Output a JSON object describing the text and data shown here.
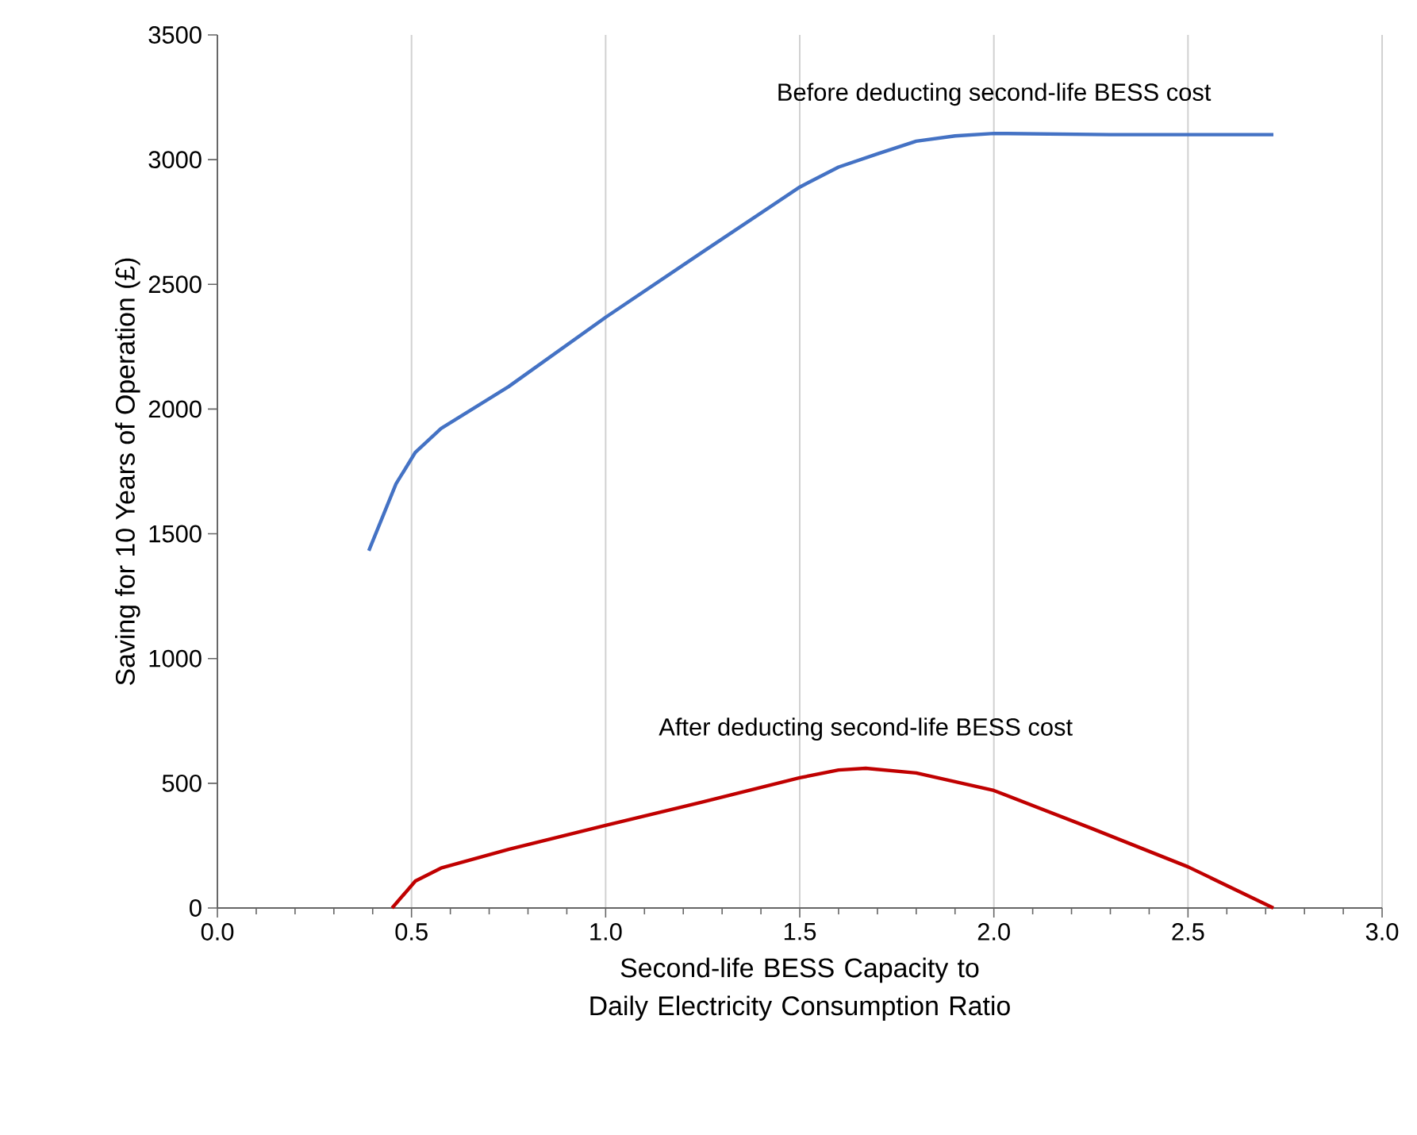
{
  "chart_data": {
    "type": "line",
    "xlabel": "Second-life BESS Capacity to Daily Electricity Consumption Ratio",
    "ylabel": "Saving for 10 Years of Operation (£)",
    "xlim": [
      0,
      3
    ],
    "ylim": [
      0,
      3500
    ],
    "xticks": [
      {
        "value": 0,
        "label": "0.0"
      },
      {
        "value": 0.5,
        "label": "0.5"
      },
      {
        "value": 1,
        "label": "1.0"
      },
      {
        "value": 1.5,
        "label": "1.5"
      },
      {
        "value": 2,
        "label": "2.0"
      },
      {
        "value": 2.5,
        "label": "2.5"
      },
      {
        "value": 3,
        "label": "3.0"
      }
    ],
    "yticks": [
      0,
      500,
      1000,
      1500,
      2000,
      2500,
      3000,
      3500
    ],
    "grid": "x",
    "legend": false,
    "marker": "none",
    "line_style": "solid",
    "series": [
      {
        "name": "Before deducting second-life BESS cost",
        "color": "#4472c4",
        "x": [
          0.39,
          0.46,
          0.51,
          0.576,
          0.75,
          1.0,
          1.25,
          1.5,
          1.6,
          1.7,
          1.8,
          1.9,
          2.0,
          2.3,
          2.72
        ],
        "values": [
          1432,
          1700,
          1827,
          1922,
          2090,
          2368,
          2630,
          2890,
          2970,
          3023,
          3074,
          3095,
          3105,
          3100,
          3100
        ]
      },
      {
        "name": "After deducting second-life BESS cost",
        "color": "#c00000",
        "x": [
          0.45,
          0.51,
          0.576,
          0.75,
          1.0,
          1.25,
          1.5,
          1.6,
          1.67,
          1.8,
          2.0,
          2.25,
          2.5,
          2.72
        ],
        "values": [
          0,
          108,
          160,
          235,
          331,
          425,
          522,
          553,
          560,
          541,
          471,
          320,
          165,
          0
        ]
      }
    ]
  }
}
